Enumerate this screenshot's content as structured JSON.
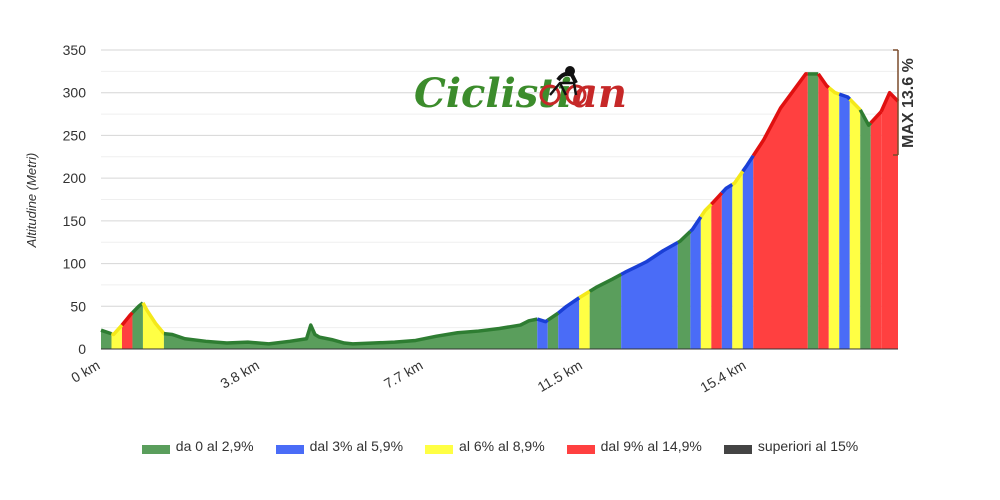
{
  "logo": {
    "part1": "Ciclisti",
    "part2": "an",
    "rider_icon": "cyclist-icon"
  },
  "chart_data": {
    "type": "area",
    "title": "",
    "xlabel": "",
    "ylabel": "Altitudine (Metri)",
    "ylim": [
      0,
      350
    ],
    "xlim": [
      0,
      19.0
    ],
    "yticks": [
      0,
      50,
      100,
      150,
      200,
      250,
      300,
      350
    ],
    "xtick_values": [
      0,
      3.8,
      7.7,
      11.5,
      15.4
    ],
    "xtick_labels": [
      "0 km",
      "3.8 km",
      "7.7 km",
      "11.5 km",
      "15.4 km"
    ],
    "grid": true,
    "max_gradient_label": "MAX 13.6 %",
    "legend": [
      {
        "label": "da 0 al 2,9%",
        "color": "#5a9e5c"
      },
      {
        "label": "dal 3% al 5,9%",
        "color": "#4a6cf7"
      },
      {
        "label": "al 6% al 8,9%",
        "color": "#ffff44"
      },
      {
        "label": "dal 9% al 14,9%",
        "color": "#ff4040"
      },
      {
        "label": "superiori al 15%",
        "color": "#444444"
      }
    ],
    "class_colors": {
      "green": {
        "fill": "#5a9e5c",
        "line": "#2e7d32"
      },
      "blue": {
        "fill": "#4a6cf7",
        "line": "#1a3fd6"
      },
      "yellow": {
        "fill": "#ffff44",
        "line": "#f4e81a"
      },
      "red": {
        "fill": "#ff4040",
        "line": "#e01010"
      }
    },
    "profile_x": [
      0,
      0.3,
      0.5,
      0.7,
      0.9,
      1.0,
      1.1,
      1.3,
      1.5,
      1.7,
      2.0,
      2.5,
      3.0,
      3.5,
      4.0,
      4.5,
      4.9,
      5.0,
      5.1,
      5.2,
      5.5,
      5.8,
      6.0,
      6.5,
      7.0,
      7.5,
      8.0,
      8.5,
      9.0,
      9.5,
      10.0,
      10.2,
      10.4,
      10.6,
      10.9,
      11.1,
      11.4,
      11.6,
      11.8,
      12.2,
      12.5,
      13.0,
      13.4,
      13.8,
      14.1,
      14.4,
      14.6,
      14.9,
      15.1,
      15.4,
      15.8,
      16.2,
      16.8,
      17.1,
      17.3,
      17.5,
      17.8,
      18.1,
      18.3,
      18.6,
      18.8,
      19.0
    ],
    "profile_y": [
      22,
      17,
      28,
      40,
      50,
      54,
      45,
      30,
      18,
      17,
      12,
      9,
      7,
      8,
      6,
      9,
      12,
      28,
      17,
      14,
      11,
      7,
      6,
      7,
      8,
      10,
      15,
      19,
      21,
      24,
      28,
      33,
      35,
      32,
      42,
      50,
      60,
      66,
      72,
      82,
      90,
      102,
      115,
      126,
      140,
      162,
      172,
      188,
      194,
      215,
      245,
      282,
      322,
      322,
      308,
      300,
      295,
      280,
      262,
      278,
      300,
      290
    ],
    "segments": [
      {
        "x0": 0,
        "x1": 0.25,
        "c": "green"
      },
      {
        "x0": 0.25,
        "x1": 0.5,
        "c": "yellow"
      },
      {
        "x0": 0.5,
        "x1": 0.75,
        "c": "red"
      },
      {
        "x0": 0.75,
        "x1": 1.0,
        "c": "green"
      },
      {
        "x0": 1.0,
        "x1": 1.5,
        "c": "yellow"
      },
      {
        "x0": 1.5,
        "x1": 10.4,
        "c": "green"
      },
      {
        "x0": 10.4,
        "x1": 10.65,
        "c": "blue"
      },
      {
        "x0": 10.65,
        "x1": 10.9,
        "c": "green"
      },
      {
        "x0": 10.9,
        "x1": 11.4,
        "c": "blue"
      },
      {
        "x0": 11.4,
        "x1": 11.65,
        "c": "yellow"
      },
      {
        "x0": 11.65,
        "x1": 12.4,
        "c": "green"
      },
      {
        "x0": 12.4,
        "x1": 13.75,
        "c": "blue"
      },
      {
        "x0": 13.75,
        "x1": 14.05,
        "c": "green"
      },
      {
        "x0": 14.05,
        "x1": 14.3,
        "c": "blue"
      },
      {
        "x0": 14.3,
        "x1": 14.55,
        "c": "yellow"
      },
      {
        "x0": 14.55,
        "x1": 14.8,
        "c": "red"
      },
      {
        "x0": 14.8,
        "x1": 15.05,
        "c": "blue"
      },
      {
        "x0": 15.05,
        "x1": 15.3,
        "c": "yellow"
      },
      {
        "x0": 15.3,
        "x1": 15.55,
        "c": "blue"
      },
      {
        "x0": 15.55,
        "x1": 16.85,
        "c": "red"
      },
      {
        "x0": 16.85,
        "x1": 17.1,
        "c": "green"
      },
      {
        "x0": 17.1,
        "x1": 17.35,
        "c": "red"
      },
      {
        "x0": 17.35,
        "x1": 17.6,
        "c": "yellow"
      },
      {
        "x0": 17.6,
        "x1": 17.85,
        "c": "blue"
      },
      {
        "x0": 17.85,
        "x1": 18.1,
        "c": "yellow"
      },
      {
        "x0": 18.1,
        "x1": 18.35,
        "c": "green"
      },
      {
        "x0": 18.35,
        "x1": 18.6,
        "c": "red"
      },
      {
        "x0": 18.6,
        "x1": 19.0,
        "c": "red"
      }
    ]
  }
}
